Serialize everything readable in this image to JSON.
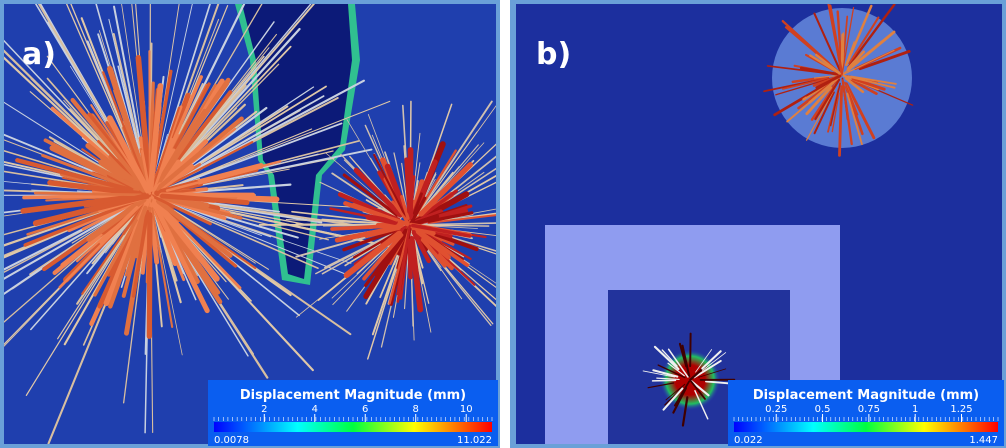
{
  "panels": [
    {
      "label": "a)",
      "legend": {
        "title": "Displacement Magnitude  (mm)",
        "range": [
          0.0078,
          11.022
        ],
        "ticks": [
          2,
          4,
          6,
          8,
          10
        ]
      }
    },
    {
      "label": "b)",
      "legend": {
        "title": "Displacement Magnitude  (mm)",
        "range": [
          0.022,
          1.447
        ],
        "ticks": [
          0.25,
          0.5,
          0.75,
          1,
          1.25
        ]
      }
    }
  ]
}
